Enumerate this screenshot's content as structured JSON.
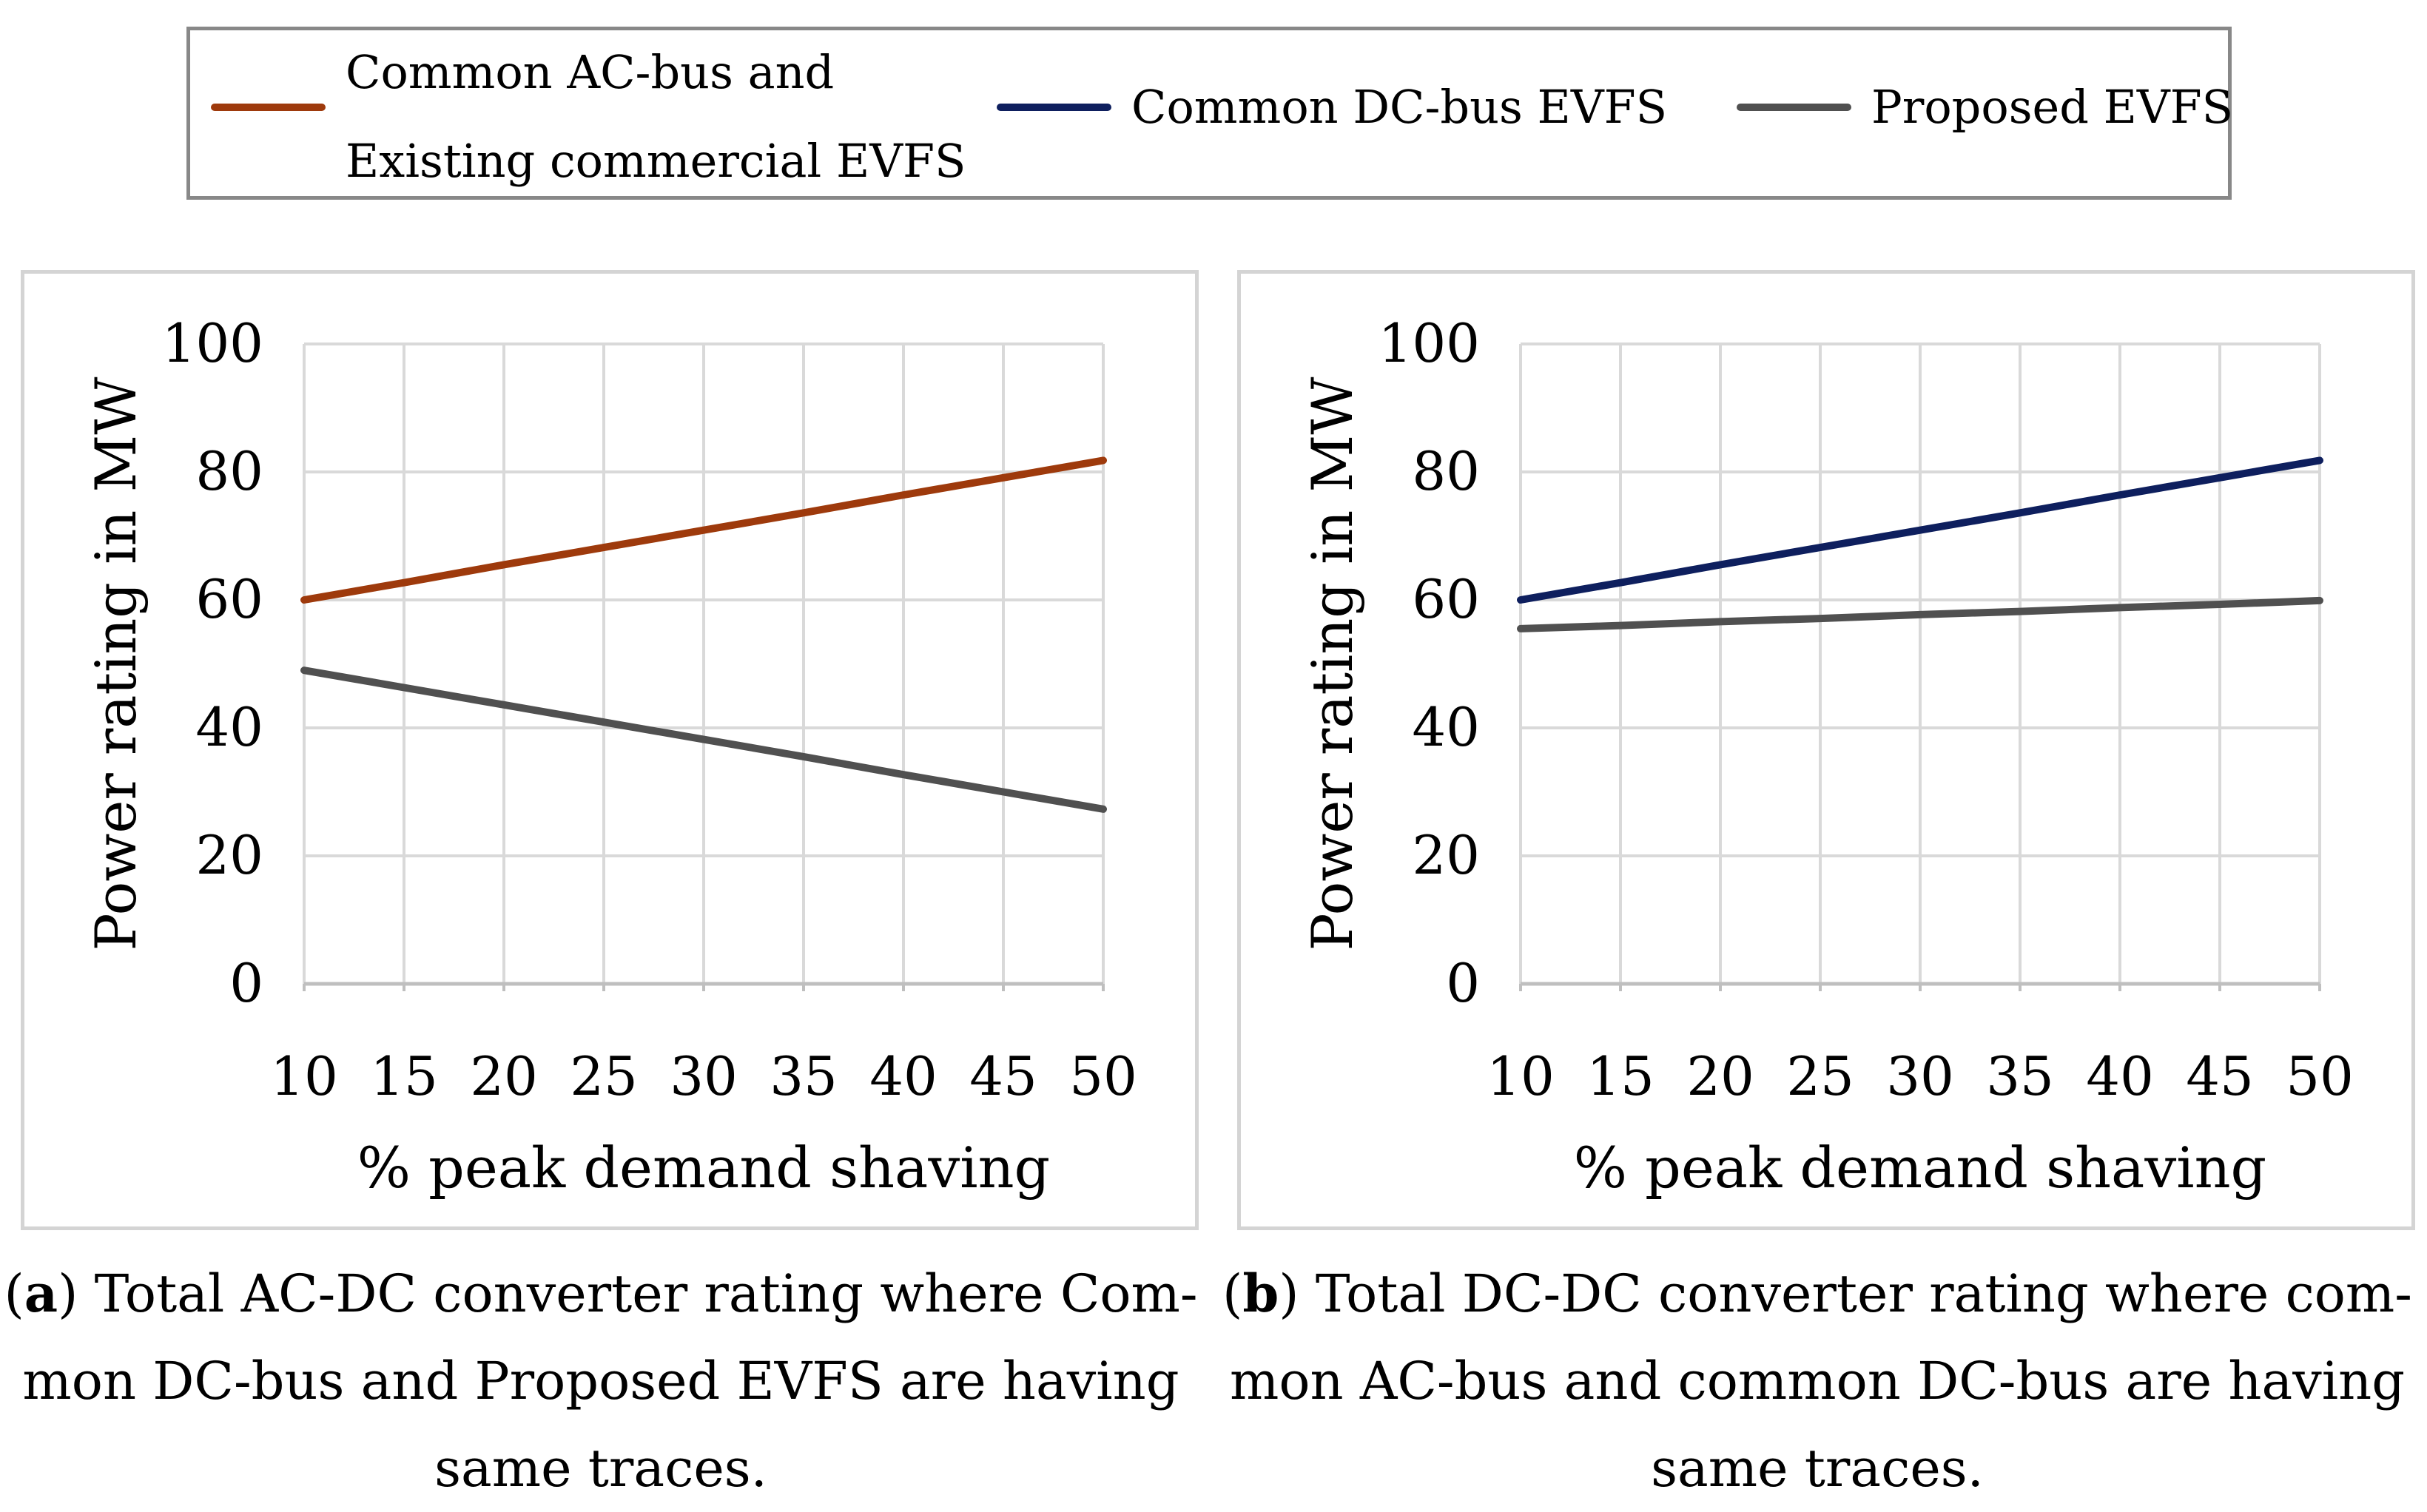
{
  "legend": {
    "items": [
      {
        "label_line1": "Common AC-bus and",
        "label_line2": "Existing commercial EVFS",
        "color": "#9E3A0C"
      },
      {
        "label": "Common DC-bus EVFS",
        "color": "#0E1F5E"
      },
      {
        "label": "Proposed EVFS",
        "color": "#505050"
      }
    ]
  },
  "chart_data": [
    {
      "type": "line",
      "title": "",
      "xlabel": "% peak demand shaving",
      "ylabel": "Power rating in MW",
      "categories": [
        "10",
        "15",
        "20",
        "25",
        "30",
        "35",
        "40",
        "45",
        "50"
      ],
      "x": [
        10,
        15,
        20,
        25,
        30,
        35,
        40,
        45,
        50
      ],
      "xlim": [
        10,
        50
      ],
      "ylim": [
        0,
        100
      ],
      "yticks": [
        "0",
        "20",
        "40",
        "60",
        "80",
        "100"
      ],
      "grid": true,
      "series": [
        {
          "name": "Common AC-bus and Existing commercial EVFS",
          "color": "#9E3A0C",
          "values": [
            60,
            62.7,
            65.5,
            68.2,
            70.9,
            73.6,
            76.4,
            79.1,
            81.8
          ]
        },
        {
          "name": "Proposed EVFS",
          "color": "#505050",
          "values": [
            49,
            46.3,
            43.6,
            40.9,
            38.2,
            35.5,
            32.7,
            30,
            27.3
          ]
        }
      ]
    },
    {
      "type": "line",
      "title": "",
      "xlabel": "% peak demand shaving",
      "ylabel": "Power rating in MW",
      "categories": [
        "10",
        "15",
        "20",
        "25",
        "30",
        "35",
        "40",
        "45",
        "50"
      ],
      "x": [
        10,
        15,
        20,
        25,
        30,
        35,
        40,
        45,
        50
      ],
      "xlim": [
        10,
        50
      ],
      "ylim": [
        0,
        100
      ],
      "yticks": [
        "0",
        "20",
        "40",
        "60",
        "80",
        "100"
      ],
      "grid": true,
      "series": [
        {
          "name": "Common DC-bus EVFS",
          "color": "#0E1F5E",
          "values": [
            60,
            62.7,
            65.5,
            68.2,
            70.9,
            73.6,
            76.4,
            79.1,
            81.8
          ]
        },
        {
          "name": "Proposed EVFS",
          "color": "#505050",
          "values": [
            55.5,
            56,
            56.6,
            57.1,
            57.7,
            58.2,
            58.8,
            59.3,
            59.9
          ]
        }
      ]
    }
  ],
  "captions": {
    "a": {
      "label": "a",
      "line1_rest": ") Total AC-DC converter rating where Com-",
      "line2": "mon DC-bus and Proposed EVFS are having",
      "line3": "same traces."
    },
    "b": {
      "label": "b",
      "line1_rest": ") Total DC-DC converter rating where com-",
      "line2": "mon AC-bus and common DC-bus are having",
      "line3": "same traces."
    }
  }
}
